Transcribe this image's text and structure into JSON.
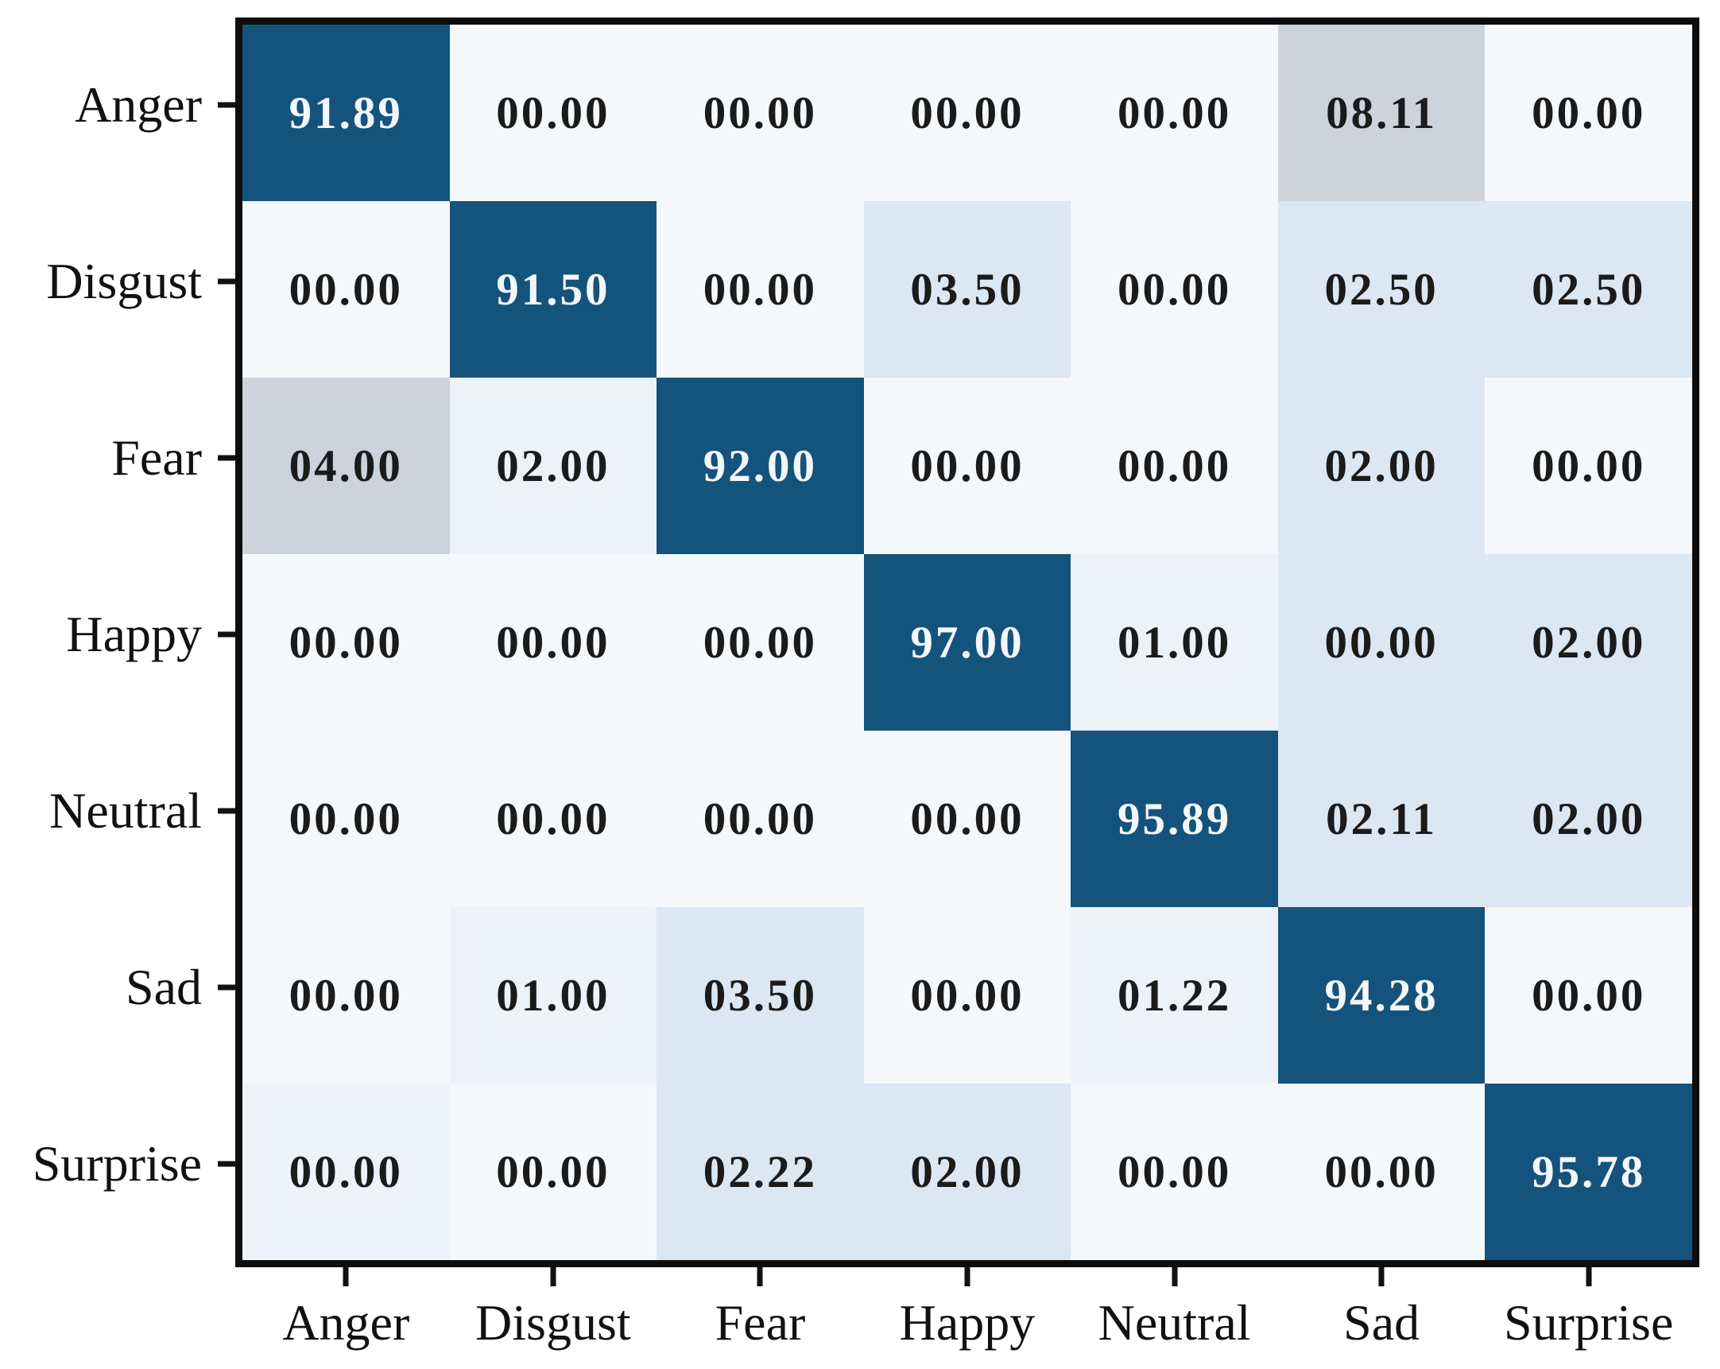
{
  "chart_data": {
    "type": "heatmap",
    "title": "",
    "xlabel": "",
    "ylabel": "",
    "legend": "none",
    "grid": false,
    "value_range": [
      0,
      100
    ],
    "categories": [
      "Anger",
      "Disgust",
      "Fear",
      "Happy",
      "Neutral",
      "Sad",
      "Surprise"
    ],
    "x_tick_labels": [
      "Anger",
      "Disgust",
      "Fear",
      "Happy",
      "Neutral",
      "Sad",
      "Surprise"
    ],
    "y_tick_labels": [
      "Anger",
      "Disgust",
      "Fear",
      "Happy",
      "Neutral",
      "Sad",
      "Surprise"
    ],
    "values": [
      [
        91.89,
        0.0,
        0.0,
        0.0,
        0.0,
        8.11,
        0.0
      ],
      [
        0.0,
        91.5,
        0.0,
        3.5,
        0.0,
        2.5,
        2.5
      ],
      [
        4.0,
        2.0,
        92.0,
        0.0,
        0.0,
        2.0,
        0.0
      ],
      [
        0.0,
        0.0,
        0.0,
        97.0,
        1.0,
        0.0,
        2.0
      ],
      [
        0.0,
        0.0,
        0.0,
        0.0,
        95.89,
        2.11,
        2.0
      ],
      [
        0.0,
        1.0,
        3.5,
        0.0,
        1.22,
        94.28,
        0.0
      ],
      [
        0.0,
        0.0,
        2.22,
        2.0,
        0.0,
        0.0,
        95.78
      ]
    ],
    "cell_labels": [
      [
        "91.89",
        "00.00",
        "00.00",
        "00.00",
        "00.00",
        "08.11",
        "00.00"
      ],
      [
        "00.00",
        "91.50",
        "00.00",
        "03.50",
        "00.00",
        "02.50",
        "02.50"
      ],
      [
        "04.00",
        "02.00",
        "92.00",
        "00.00",
        "00.00",
        "02.00",
        "00.00"
      ],
      [
        "00.00",
        "00.00",
        "00.00",
        "97.00",
        "01.00",
        "00.00",
        "02.00"
      ],
      [
        "00.00",
        "00.00",
        "00.00",
        "00.00",
        "95.89",
        "02.11",
        "02.00"
      ],
      [
        "00.00",
        "01.00",
        "03.50",
        "00.00",
        "01.22",
        "94.28",
        "00.00"
      ],
      [
        "00.00",
        "00.00",
        "02.22",
        "02.00",
        "00.00",
        "00.00",
        "95.78"
      ]
    ],
    "cell_shades": [
      [
        "dark",
        "white",
        "white",
        "white",
        "white",
        "gray",
        "white"
      ],
      [
        "white",
        "dark",
        "white",
        "light",
        "white",
        "light",
        "light"
      ],
      [
        "gray",
        "faint",
        "dark",
        "white",
        "white",
        "light",
        "white"
      ],
      [
        "white",
        "white",
        "white",
        "dark",
        "faint",
        "light",
        "light"
      ],
      [
        "white",
        "white",
        "white",
        "white",
        "dark",
        "light",
        "light"
      ],
      [
        "white",
        "faint",
        "light",
        "white",
        "faint",
        "dark",
        "white"
      ],
      [
        "faint",
        "white",
        "light",
        "light",
        "white",
        "white",
        "dark"
      ]
    ],
    "palette": {
      "dark": "#14537B",
      "gray": "#CCD3DB",
      "light": "#DBE7F3",
      "faint": "#EDF2F8",
      "white": "#F5F8FB",
      "frame": "#0D0D0D",
      "tick": "#111111",
      "axis_text": "#111111",
      "cell_text_dark": "#1B1B1B",
      "cell_text_on_dark": "#F3F6FA"
    }
  }
}
